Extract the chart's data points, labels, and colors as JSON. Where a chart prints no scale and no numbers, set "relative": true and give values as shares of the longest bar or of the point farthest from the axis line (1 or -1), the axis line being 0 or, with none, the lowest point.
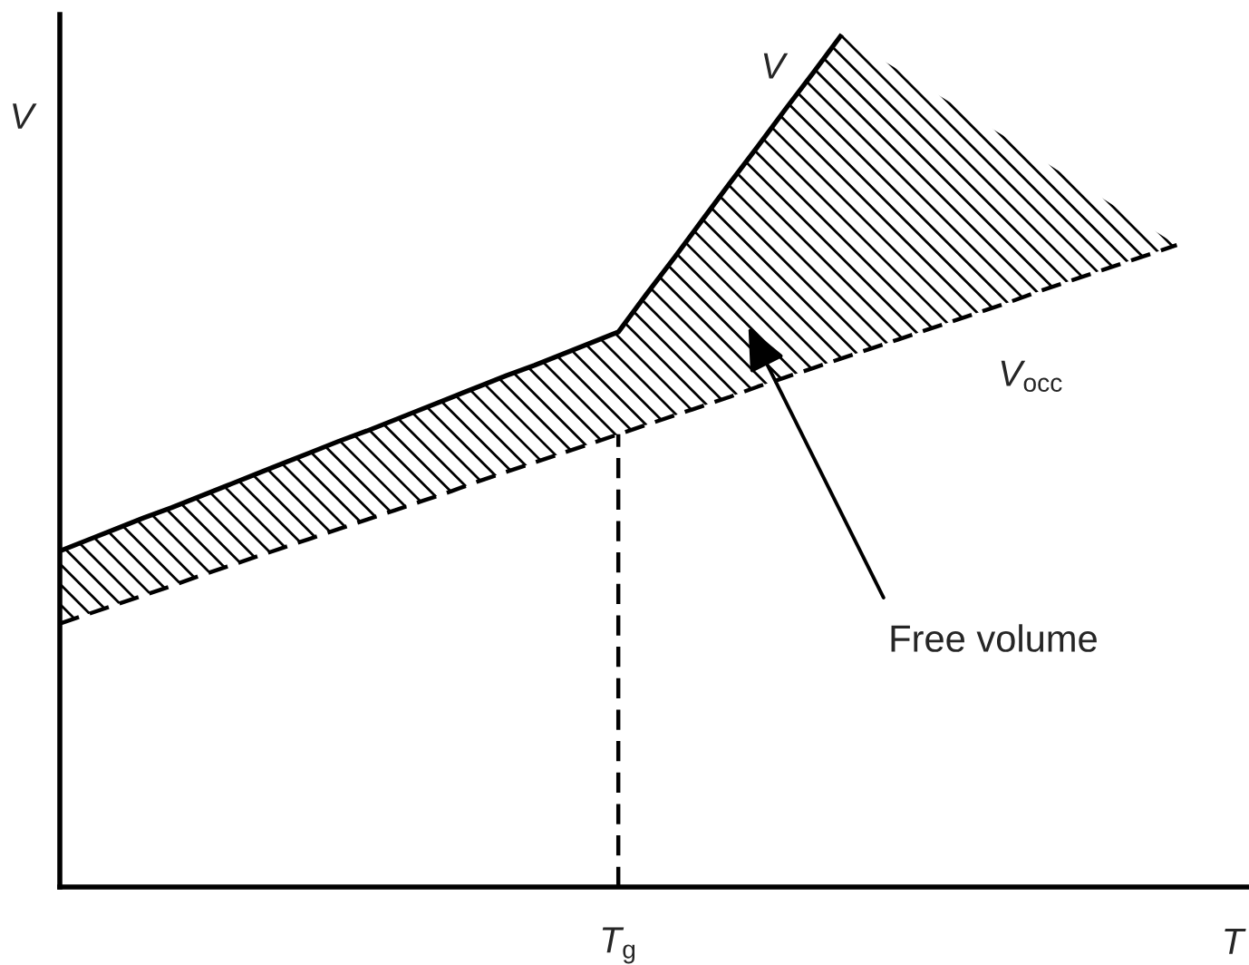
{
  "chart_data": {
    "type": "line",
    "relative": true,
    "ylabel": "V",
    "tick_labels": "x",
    "categories": [
      null,
      null,
      null,
      null,
      null,
      null,
      null,
      null,
      null,
      null,
      null,
      null,
      null,
      null,
      null,
      null,
      null,
      null,
      null,
      null,
      "T$_{g}$",
      null,
      null,
      null,
      null,
      null,
      null,
      null,
      null,
      null,
      null,
      null,
      null,
      null,
      null,
      null,
      null,
      null,
      null,
      null,
      null,
      null,
      "T"
    ],
    "series": [
      {
        "name": "V",
        "type": "line",
        "color": "#000000",
        "line_style": "solid",
        "values": [
          0.394,
          0.407,
          0.42,
          0.433,
          0.445,
          0.458,
          0.471,
          0.484,
          0.497,
          0.51,
          0.523,
          0.535,
          0.548,
          0.561,
          0.574,
          0.587,
          0.6,
          0.612,
          0.625,
          0.638,
          0.651,
          0.695,
          0.738,
          0.782,
          0.826,
          0.869,
          0.913,
          0.956,
          1,
          null,
          null,
          null,
          null,
          null,
          null,
          null,
          null,
          null,
          null,
          null,
          null,
          null,
          null
        ],
        "upper": [
          0.394,
          0.407,
          0.42,
          0.433,
          0.445,
          0.458,
          0.471,
          0.484,
          0.497,
          0.51,
          0.523,
          0.535,
          0.548,
          0.561,
          0.574,
          0.587,
          0.6,
          0.612,
          0.625,
          0.638,
          0.651,
          0.695,
          0.738,
          0.782,
          0.826,
          0.869,
          0.913,
          0.956,
          1,
          0.979,
          0.959,
          0.938,
          0.918,
          0.897,
          0.877,
          0.856,
          0.835,
          0.815,
          0.794,
          0.774,
          0.753,
          null,
          null
        ],
        "lower": [
          0.309,
          0.32,
          0.331,
          0.342,
          0.353,
          0.365,
          0.376,
          0.387,
          0.398,
          0.409,
          0.42,
          0.431,
          0.442,
          0.453,
          0.464,
          0.476,
          0.487,
          0.498,
          0.509,
          0.52,
          0.531,
          0.542,
          0.553,
          0.564,
          0.575,
          0.587,
          0.598,
          0.609,
          0.62,
          0.631,
          0.642,
          0.653,
          0.664,
          0.675,
          0.686,
          0.698,
          0.709,
          0.72,
          0.731,
          0.742,
          0.753,
          null,
          null
        ]
      },
      {
        "name": "V$_{occ}$",
        "type": "line",
        "color": "#000000",
        "line_style": "dashed",
        "values": [
          0.309,
          0.32,
          0.331,
          0.342,
          0.353,
          0.365,
          0.376,
          0.387,
          0.398,
          0.409,
          0.42,
          0.431,
          0.442,
          0.453,
          0.464,
          0.476,
          0.487,
          0.498,
          0.509,
          0.52,
          0.531,
          0.542,
          0.553,
          0.564,
          0.575,
          0.587,
          0.598,
          0.609,
          0.62,
          0.631,
          0.642,
          0.653,
          0.664,
          0.675,
          0.686,
          0.698,
          0.709,
          0.72,
          0.731,
          0.742,
          0.753,
          null,
          null
        ]
      },
      {
        "type": "line",
        "color": "#000000",
        "line_style": "dashed",
        "x": [
          "T$_{g}$",
          "T$_{g}$"
        ],
        "values": [
          0,
          0.531
        ]
      }
    ],
    "annotations": [
      "Free volume"
    ]
  }
}
